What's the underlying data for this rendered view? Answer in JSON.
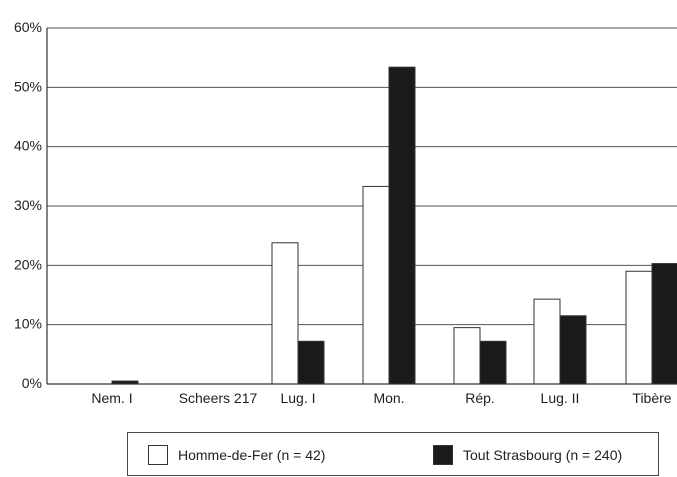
{
  "chart_data": {
    "type": "bar",
    "categories": [
      "Nem. I",
      "Scheers 217",
      "Lug. I",
      "Mon.",
      "Rép.",
      "Lug. II",
      "Tibère"
    ],
    "series": [
      {
        "name": "Homme-de-Fer (n = 42)",
        "color": "#ffffff",
        "values": [
          0,
          0,
          23.8,
          33.3,
          9.5,
          14.3,
          19.0
        ]
      },
      {
        "name": "Tout Strasbourg (n = 240)",
        "color": "#1a1a1a",
        "values": [
          0.5,
          0,
          7.2,
          53.4,
          7.2,
          11.5,
          20.3
        ]
      }
    ],
    "yticks": [
      "0%",
      "10%",
      "20%",
      "30%",
      "40%",
      "50%",
      "60%"
    ],
    "ylim": [
      0,
      60
    ],
    "grid": true,
    "legend": "bottom"
  }
}
